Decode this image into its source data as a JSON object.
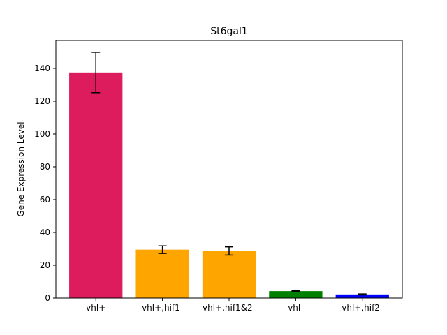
{
  "chart_data": {
    "type": "bar",
    "title": "St6gal1",
    "xlabel": "",
    "ylabel": "Gene Expression Level",
    "categories": [
      "vhl+",
      "vhl+,hif1-",
      "vhl+,hif1&2-",
      "vhl-",
      "vhl+,hif2-"
    ],
    "values": [
      137.5,
      29.5,
      28.7,
      4.2,
      2.2
    ],
    "errors": [
      12.3,
      2.3,
      2.5,
      0.3,
      0.3
    ],
    "colors": [
      "#dc1c5c",
      "#ffa500",
      "#ffa500",
      "#008000",
      "#0000ff"
    ],
    "ylim": [
      0,
      157
    ],
    "yticks": [
      0,
      20,
      40,
      60,
      80,
      100,
      120,
      140
    ],
    "grid": false,
    "legend": "none"
  }
}
